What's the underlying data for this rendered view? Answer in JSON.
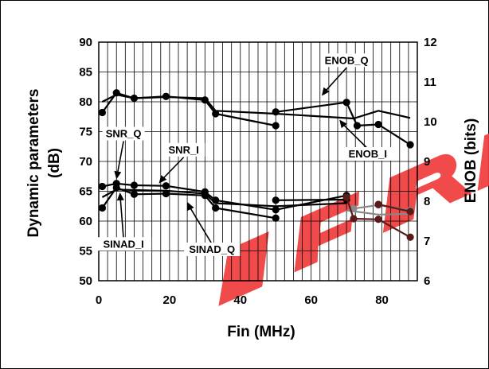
{
  "chart_data": {
    "type": "line",
    "title": "",
    "xlabel": "Fin (MHz)",
    "ylabel_left": "Dynamic parameters (dB)",
    "ylabel_left_lines": [
      "Dynamic parameters",
      "(dB)"
    ],
    "ylabel_right": "ENOB (bits)",
    "xlim": [
      0,
      90
    ],
    "ylim_left": [
      50,
      90
    ],
    "ylim_right": [
      6,
      12
    ],
    "x_ticks": [
      0,
      20,
      40,
      60,
      80
    ],
    "y_ticks_left": [
      50,
      55,
      60,
      65,
      70,
      75,
      80,
      85,
      90
    ],
    "y_ticks_right": [
      6,
      7,
      8,
      9,
      10,
      11,
      12
    ],
    "grid": {
      "horizontal": true,
      "vertical": true,
      "vertical_step": 2.5
    },
    "series": [
      {
        "axis": "left",
        "markers": true,
        "color": "#000000",
        "points": [
          [
            1,
            78.2
          ],
          [
            5,
            81.5
          ],
          [
            10,
            80.6
          ],
          [
            19,
            80.9
          ],
          [
            30,
            80.3
          ],
          [
            33,
            78.0
          ],
          [
            50,
            76.0
          ]
        ]
      },
      {
        "axis": "left",
        "markers": true,
        "color": "#000000",
        "points": [
          [
            50,
            78.3
          ],
          [
            70,
            79.9
          ],
          [
            73,
            76.0
          ],
          [
            79,
            76.2
          ],
          [
            88,
            72.8
          ]
        ]
      },
      {
        "axis": "left",
        "markers": false,
        "color": "#000000",
        "points": [
          [
            1,
            80.0
          ],
          [
            5,
            81.2
          ],
          [
            10,
            80.6
          ],
          [
            19,
            80.8
          ],
          [
            30,
            80.6
          ],
          [
            33,
            78.5
          ],
          [
            50,
            78.0
          ],
          [
            72,
            77.2
          ],
          [
            79,
            78.5
          ],
          [
            88,
            77.3
          ]
        ]
      },
      {
        "axis": "left",
        "markers": true,
        "color": "#000000",
        "points": [
          [
            1,
            65.8
          ],
          [
            5,
            66.3
          ],
          [
            10,
            66.0
          ],
          [
            19,
            65.9
          ],
          [
            30,
            64.9
          ],
          [
            33,
            63.5
          ],
          [
            50,
            61.9
          ],
          [
            70,
            64.3
          ]
        ]
      },
      {
        "axis": "left",
        "markers": true,
        "color": "#000000",
        "points": [
          [
            1,
            62.2
          ],
          [
            5,
            65.6
          ],
          [
            10,
            64.5
          ],
          [
            19,
            64.6
          ],
          [
            30,
            64.3
          ],
          [
            33,
            62.2
          ],
          [
            50,
            60.5
          ]
        ]
      },
      {
        "axis": "left",
        "markers": true,
        "color": "#000000",
        "points": [
          [
            50,
            63.5
          ],
          [
            70,
            63.6
          ]
        ]
      },
      {
        "axis": "left",
        "markers": false,
        "color": "#000000",
        "points": [
          [
            1,
            64.0
          ],
          [
            5,
            65.3
          ],
          [
            10,
            65.2
          ],
          [
            19,
            65.1
          ],
          [
            30,
            64.6
          ],
          [
            33,
            63.0
          ],
          [
            50,
            62.5
          ],
          [
            70,
            63.0
          ]
        ]
      },
      {
        "axis": "left",
        "markers": false,
        "color": "#888888",
        "points": [
          [
            70,
            61.8
          ],
          [
            79,
            61.1
          ],
          [
            88,
            61.2
          ]
        ]
      },
      {
        "axis": "left",
        "markers": true,
        "color": "#888888",
        "points": [
          [
            72,
            62.1
          ],
          [
            79,
            62.7
          ],
          [
            88,
            61.8
          ]
        ]
      },
      {
        "axis": "left",
        "markers": true,
        "color": "#5a1a1a",
        "points": [
          [
            70,
            64.0
          ],
          [
            72,
            60.4
          ],
          [
            79,
            60.3
          ],
          [
            88,
            57.3
          ]
        ]
      },
      {
        "axis": "left",
        "markers": true,
        "color": "#5a1a1a",
        "points": [
          [
            79,
            62.8
          ],
          [
            88,
            61.6
          ]
        ]
      }
    ],
    "annotations": [
      {
        "text": "ENOB_Q",
        "tx": 70,
        "ty": 86.5,
        "ax": 63,
        "ay": 81
      },
      {
        "text": "ENOB_I",
        "tx": 76,
        "ty": 70.8,
        "ax": 68,
        "ay": 77
      },
      {
        "text": "SNR_Q",
        "tx": 7,
        "ty": 74.2,
        "ax": 5,
        "ay": 67
      },
      {
        "text": "SNR_I",
        "tx": 24,
        "ty": 71.5,
        "ax": 17,
        "ay": 66.3
      },
      {
        "text": "SINAD_I",
        "tx": 7,
        "ty": 55.7,
        "ax": 6,
        "ay": 64.8
      },
      {
        "text": "SINAD_Q",
        "tx": 32,
        "ty": 54.8,
        "ax": 25,
        "ay": 63.2
      }
    ]
  },
  "watermark": {
    "color": "#ef3b3b"
  }
}
